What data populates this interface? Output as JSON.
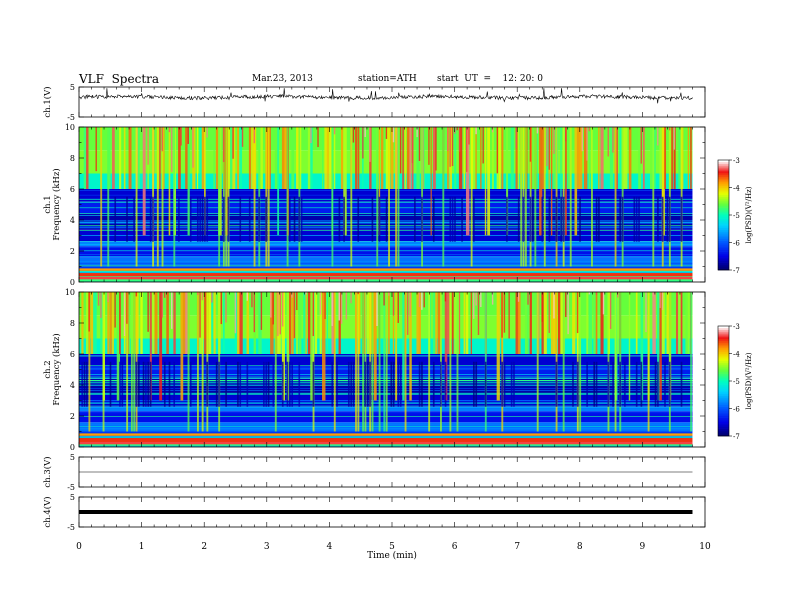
{
  "header": {
    "title": "VLF  Spectra",
    "date": "Mar.23, 2013",
    "station": "station=ATH",
    "start": "start  UT  =    12: 20: 0"
  },
  "colors": {
    "colormap": [
      "#000070",
      "#0000ff",
      "#0080ff",
      "#00ffff",
      "#00ff80",
      "#80ff00",
      "#ffff00",
      "#ff8000",
      "#ff0000",
      "#ffffff"
    ],
    "trace": "#000000"
  },
  "chart_data": [
    {
      "type": "line",
      "id": "ch1",
      "ylabel": "ch.1(V)",
      "ylim": [
        -5,
        5
      ],
      "yticks": [
        "5",
        "-5"
      ],
      "xlim": [
        0,
        10
      ],
      "description_baseline": 1.6
    },
    {
      "type": "heatmap",
      "id": "spec1",
      "ylabel": "ch.1\nFrequency  (kHz)",
      "ylabel_line1": "ch.1",
      "ylabel_line2": "Frequency  (kHz)",
      "xlim": [
        0,
        10
      ],
      "ylim": [
        0,
        10
      ],
      "yticks": [
        "0",
        "2",
        "4",
        "6",
        "8",
        "10"
      ],
      "data_end_min": 9.8,
      "colorbar": {
        "label": "log(PSD)(V²/Hz)",
        "range": [
          -7,
          -3
        ],
        "ticks": [
          "-7",
          "-6",
          "-5",
          "-4",
          "-3"
        ]
      }
    },
    {
      "type": "heatmap",
      "id": "spec2",
      "ylabel_line1": "ch.2",
      "ylabel_line2": "Frequency  (kHz)",
      "xlim": [
        0,
        10
      ],
      "ylim": [
        0,
        10
      ],
      "yticks": [
        "0",
        "2",
        "4",
        "6",
        "8",
        "10"
      ],
      "data_end_min": 9.8,
      "colorbar": {
        "label": "log(PSD)(V²/Hz)",
        "range": [
          -7,
          -3
        ],
        "ticks": [
          "-7",
          "-6",
          "-5",
          "-4",
          "-3"
        ]
      }
    },
    {
      "type": "line",
      "id": "ch3",
      "ylabel": "ch.3(V)",
      "ylim": [
        -5,
        5
      ],
      "yticks": [
        "5",
        "-5"
      ],
      "xlim": [
        0,
        10
      ],
      "description_baseline": 0
    },
    {
      "type": "line",
      "id": "ch4",
      "ylabel": "ch.4(V)",
      "ylim": [
        -5,
        5
      ],
      "yticks": [
        "5",
        "-5"
      ],
      "xlim": [
        0,
        10
      ],
      "description_baseline": 0
    }
  ],
  "xaxis": {
    "label": "Time  (min)",
    "ticks": [
      "0",
      "1",
      "2",
      "3",
      "4",
      "5",
      "6",
      "7",
      "8",
      "9",
      "10"
    ]
  }
}
